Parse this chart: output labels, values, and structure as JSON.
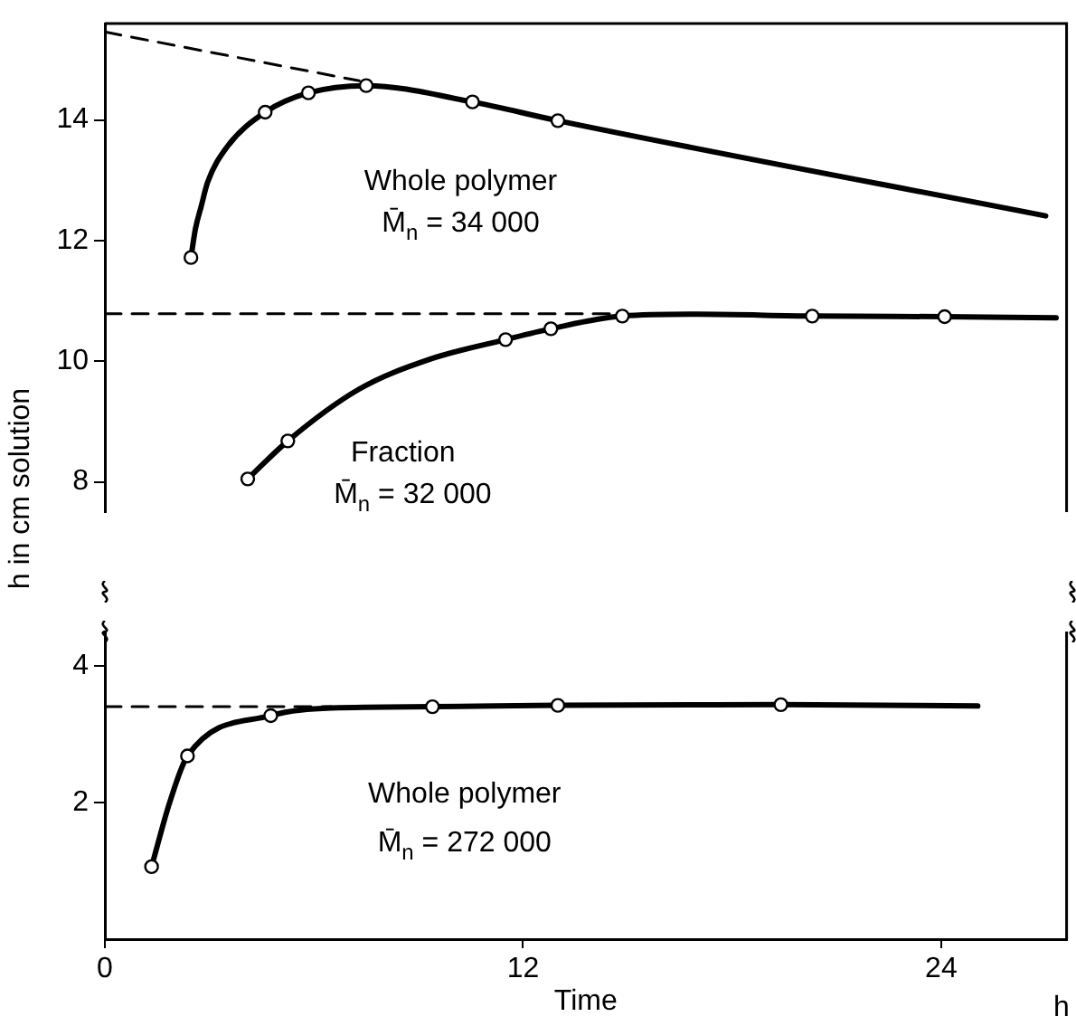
{
  "chart_data": [
    {
      "type": "line",
      "ylabel": "h in cm solution",
      "tick_labels": "y",
      "xlim": [
        0,
        27.6
      ],
      "xticks": [
        0,
        12,
        24
      ],
      "ylim": [
        7.5,
        15.6
      ],
      "yticks": [
        8,
        10,
        12,
        14
      ],
      "series": [
        {
          "type": "line",
          "marker": "none",
          "color": "#000000",
          "x": [
            2.47,
            2.6,
            2.76,
            2.95,
            3.5,
            4.6,
            5.84,
            7.5,
            10.55,
            13.0,
            27.0
          ],
          "values": [
            11.72,
            12.2,
            12.56,
            12.97,
            13.55,
            14.13,
            14.45,
            14.57,
            14.3,
            13.99,
            12.41
          ]
        },
        {
          "type": "line",
          "marker": "none",
          "line_style": "dashed",
          "color": "#000000",
          "x": [
            0,
            7.3
          ],
          "values": [
            15.46,
            14.65
          ]
        },
        {
          "type": "scatter",
          "marker": "circle",
          "color": "#000000",
          "x": [
            2.47,
            4.6,
            5.84,
            7.5,
            10.55,
            13.0
          ],
          "values": [
            11.72,
            14.13,
            14.45,
            14.57,
            14.3,
            13.99
          ]
        },
        {
          "type": "line",
          "marker": "none",
          "color": "#000000",
          "x": [
            4.1,
            5.25,
            7.3,
            9.3,
            11.5,
            12.8,
            14.85,
            17,
            20.3,
            24.1,
            27.3
          ],
          "values": [
            8.05,
            8.68,
            9.54,
            10.03,
            10.36,
            10.54,
            10.75,
            10.78,
            10.75,
            10.74,
            10.72
          ]
        },
        {
          "type": "line",
          "marker": "none",
          "line_style": "dashed",
          "color": "#000000",
          "x": [
            0,
            14.85
          ],
          "values": [
            10.79,
            10.79
          ]
        },
        {
          "type": "scatter",
          "marker": "circle",
          "color": "#000000",
          "x": [
            4.1,
            5.25,
            11.5,
            12.8,
            14.85,
            20.3,
            24.1
          ],
          "values": [
            8.05,
            8.68,
            10.36,
            10.54,
            10.75,
            10.75,
            10.74
          ]
        }
      ],
      "annotations": [
        "Whole polymer",
        "M̄$_{n}$ = 34 000",
        "Fraction",
        "M̄$_{n}$ = 32 000"
      ]
    },
    {
      "type": "line",
      "xlabel": "Time",
      "xlim": [
        0,
        27.6
      ],
      "xticks": [
        0,
        12,
        24
      ],
      "ylim": [
        0,
        4.5
      ],
      "yticks": [
        2,
        4
      ],
      "series": [
        {
          "type": "line",
          "marker": "none",
          "color": "#000000",
          "x": [
            1.34,
            1.86,
            2.37,
            4.76,
            6.5,
            9.4,
            13,
            19.4,
            25.05
          ],
          "values": [
            1.06,
            2.0,
            2.68,
            3.27,
            3.38,
            3.4,
            3.42,
            3.43,
            3.41
          ]
        },
        {
          "type": "line",
          "marker": "none",
          "line_style": "dashed",
          "color": "#000000",
          "x": [
            0,
            6.5
          ],
          "values": [
            3.4,
            3.4
          ]
        },
        {
          "type": "scatter",
          "marker": "circle",
          "color": "#000000",
          "x": [
            1.34,
            2.37,
            4.76,
            9.4,
            13,
            19.4
          ],
          "values": [
            1.06,
            2.68,
            3.27,
            3.4,
            3.42,
            3.43
          ]
        }
      ],
      "annotations": [
        "Whole polymer",
        "M̄$_{n}$ = 272 000",
        "h"
      ]
    }
  ]
}
